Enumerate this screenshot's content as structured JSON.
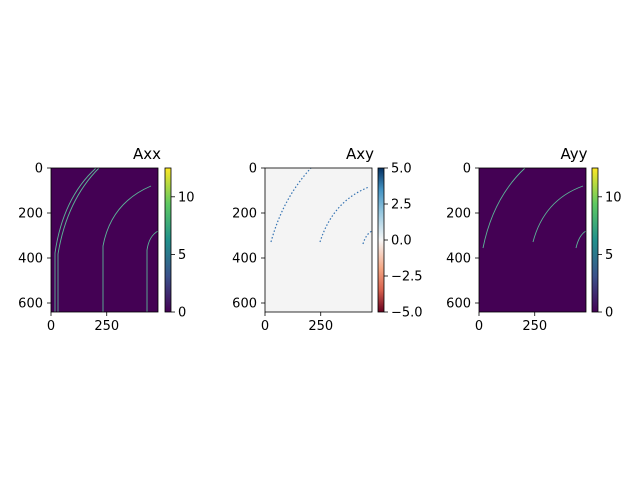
{
  "chart_data": [
    {
      "type": "heatmap",
      "title": "Axx",
      "colormap": "viridis",
      "background_color": "#440154",
      "line_color": "#5fc8a0",
      "x_ticks": [
        0,
        250
      ],
      "y_ticks": [
        0,
        200,
        400,
        600
      ],
      "xlim": [
        0,
        480
      ],
      "ylim": [
        640,
        0
      ],
      "colorbar": {
        "min": 0,
        "max": 12.5,
        "ticks": [
          0,
          5,
          10
        ],
        "tick_labels": [
          "0",
          "5",
          "10"
        ]
      }
    },
    {
      "type": "heatmap",
      "title": "Axy",
      "colormap": "RdBu",
      "background_color": "#f4f4f4",
      "line_color": "#2166ac",
      "x_ticks": [
        0,
        250
      ],
      "y_ticks": [
        0,
        200,
        400,
        600
      ],
      "xlim": [
        0,
        480
      ],
      "ylim": [
        640,
        0
      ],
      "colorbar": {
        "min": -5.0,
        "max": 5.0,
        "ticks": [
          5.0,
          2.5,
          0.0,
          -2.5,
          -5.0
        ],
        "tick_labels": [
          "5.0",
          "2.5",
          "0.0",
          "−2.5",
          "−5.0"
        ]
      }
    },
    {
      "type": "heatmap",
      "title": "Ayy",
      "colormap": "viridis",
      "background_color": "#440154",
      "line_color": "#5fc8a0",
      "x_ticks": [
        0,
        250
      ],
      "y_ticks": [
        0,
        200,
        400,
        600
      ],
      "xlim": [
        0,
        480
      ],
      "ylim": [
        640,
        0
      ],
      "colorbar": {
        "min": 0,
        "max": 12.5,
        "ticks": [
          0,
          5,
          10
        ],
        "tick_labels": [
          "0",
          "5",
          "10"
        ]
      }
    }
  ]
}
